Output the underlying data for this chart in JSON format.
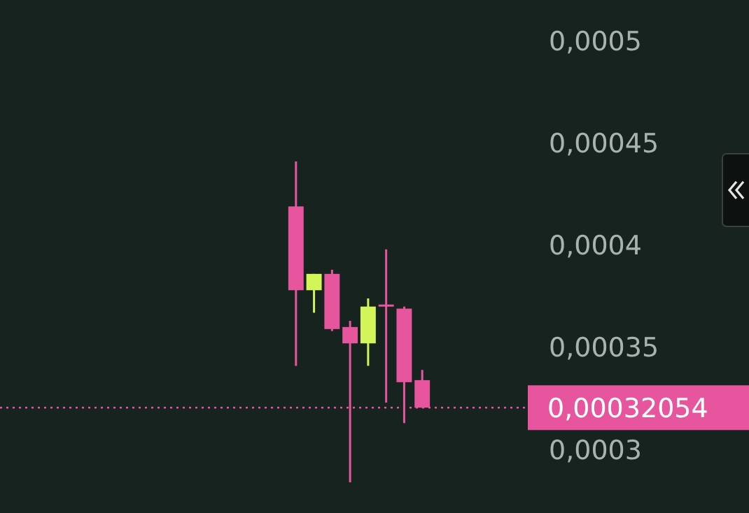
{
  "chart_data": {
    "type": "candlestick",
    "categories": [
      null,
      null,
      null,
      null,
      null,
      null,
      null,
      null
    ],
    "ohlc": [
      [
        0.000419,
        0.000441,
        0.000341,
        0.000378
      ],
      [
        0.000378,
        0.000386,
        0.000367,
        0.000386
      ],
      [
        0.000386,
        0.000388,
        0.000358,
        0.000359
      ],
      [
        0.00036,
        0.000363,
        0.000284,
        0.000352
      ],
      [
        0.000352,
        0.000374,
        0.000341,
        0.00037
      ],
      [
        0.000371,
        0.000398,
        0.000323,
        0.00037
      ],
      [
        0.000369,
        0.00037,
        0.000313,
        0.000333
      ],
      [
        0.000334,
        0.000339,
        0.00032054,
        0.00032054
      ]
    ],
    "colors": [
      "#e8559f",
      "#d4f55a",
      "#e8559f",
      "#e8559f",
      "#d4f55a",
      "#e8559f",
      "#e8559f",
      "#e8559f"
    ],
    "ylim": [
      0.000269,
      0.00052
    ],
    "yticks": [
      {
        "value": 0.0003,
        "label": "0,0003"
      },
      {
        "value": 0.00035,
        "label": "0,00035"
      },
      {
        "value": 0.0004,
        "label": "0,0004"
      },
      {
        "value": 0.00045,
        "label": "0,00045"
      },
      {
        "value": 0.0005,
        "label": "0,0005"
      }
    ],
    "ref_lines": [
      {
        "axis": "y",
        "value": 0.00032054,
        "label": "0,00032054",
        "color": "#e8559f",
        "line_style": "dotted"
      }
    ],
    "tick_labels": "y"
  }
}
